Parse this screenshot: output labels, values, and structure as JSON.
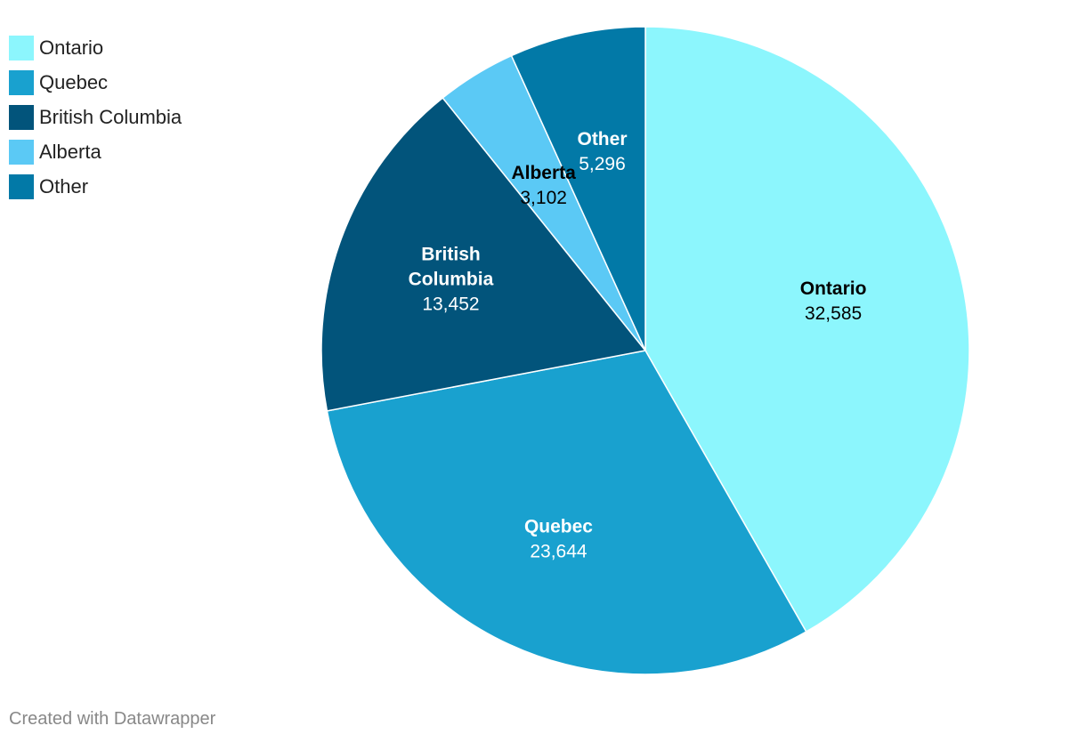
{
  "chart_data": {
    "type": "pie",
    "categories": [
      "Ontario",
      "Quebec",
      "British Columbia",
      "Alberta",
      "Other"
    ],
    "values": [
      32585,
      23644,
      13452,
      3102,
      5296
    ],
    "value_labels": [
      "32,585",
      "23,644",
      "13,452",
      "3,102",
      "5,296"
    ],
    "colors": [
      "#8cf6fd",
      "#19a1cf",
      "#02547b",
      "#5bc9f5",
      "#0279a7"
    ],
    "label_colors": [
      "#000000",
      "#ffffff",
      "#ffffff",
      "#000000",
      "#ffffff"
    ],
    "legend_position": "top-left",
    "start_angle_deg": 0,
    "direction": "clockwise"
  },
  "footer": {
    "credit": "Created with Datawrapper"
  }
}
